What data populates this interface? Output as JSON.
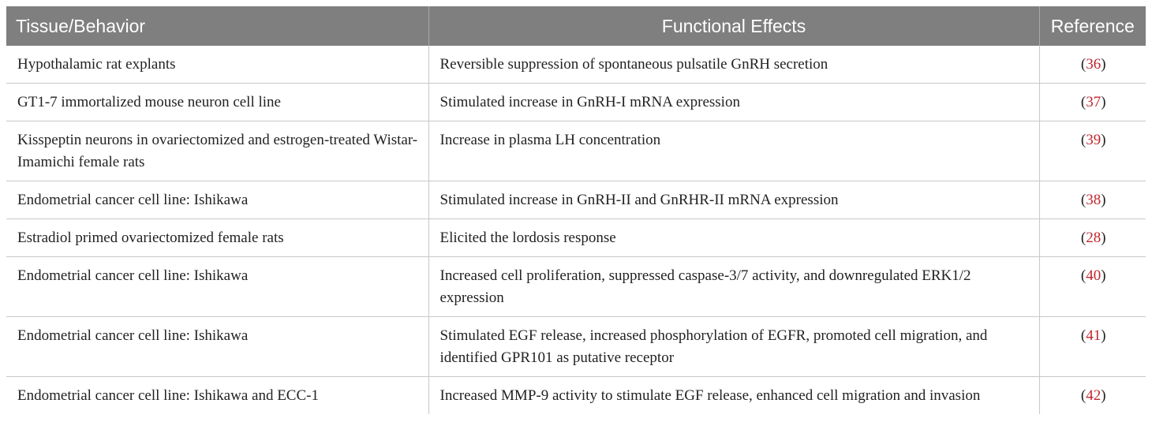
{
  "table": {
    "headers": [
      "Tissue/Behavior",
      "Functional Effects",
      "Reference"
    ],
    "rows": [
      {
        "tissue": "Hypothalamic rat explants",
        "effect": "Reversible suppression of spontaneous pulsatile GnRH secretion",
        "ref": "36"
      },
      {
        "tissue": "GT1-7 immortalized mouse neuron cell line",
        "effect": "Stimulated increase in GnRH-I mRNA expression",
        "ref": "37"
      },
      {
        "tissue": "Kisspeptin neurons in ovariectomized and estrogen-treated Wistar-Imamichi female rats",
        "effect": "Increase in plasma LH concentration",
        "ref": "39"
      },
      {
        "tissue": "Endometrial cancer cell line: Ishikawa",
        "effect": "Stimulated increase in GnRH-II and GnRHR-II mRNA expression",
        "ref": "38"
      },
      {
        "tissue": "Estradiol primed ovariectomized female rats",
        "effect": "Elicited the lordosis response",
        "ref": "28"
      },
      {
        "tissue": "Endometrial cancer cell line: Ishikawa",
        "effect": "Increased cell proliferation, suppressed caspase-3/7 activity, and downregulated ERK1/2 expression",
        "ref": "40"
      },
      {
        "tissue": "Endometrial cancer cell line: Ishikawa",
        "effect": "Stimulated EGF release, increased phosphorylation of EGFR, promoted cell migration, and identified GPR101 as putative receptor",
        "ref": "41"
      },
      {
        "tissue": "Endometrial cancer cell line: Ishikawa and ECC-1",
        "effect": "Increased MMP-9 activity to stimulate EGF release, enhanced cell migration and invasion",
        "ref": "42"
      }
    ]
  },
  "colors": {
    "header_bg": "#7f7f7f",
    "header_text": "#ffffff",
    "reference_link": "#c0272d",
    "grid": "#c8c8c8"
  }
}
